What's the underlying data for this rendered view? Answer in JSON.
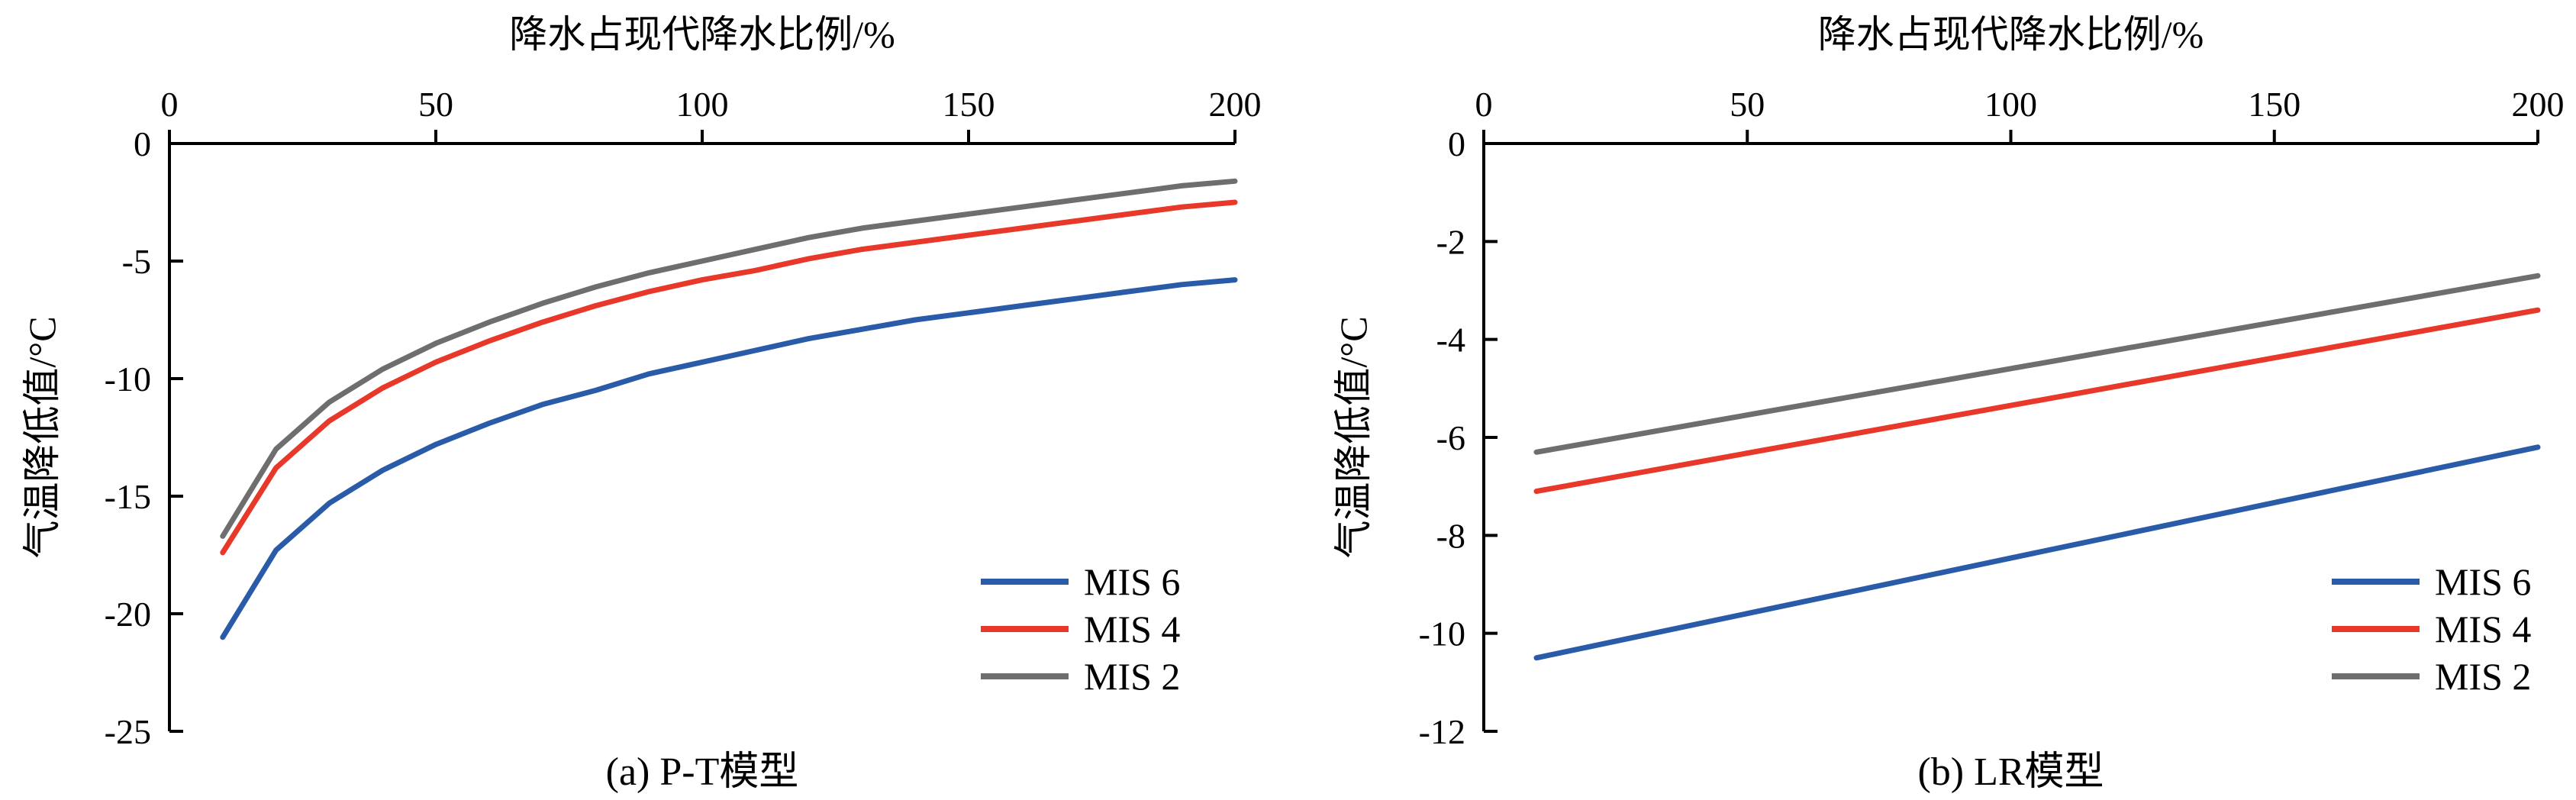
{
  "chart_data": [
    {
      "type": "line",
      "caption": "(a) P-T模型",
      "xlabel": "降水占现代降水比例/%",
      "ylabel": "气温降低值/°C",
      "xlim": [
        0,
        200
      ],
      "ylim": [
        -25,
        0
      ],
      "xticks": [
        0,
        50,
        100,
        150,
        200
      ],
      "yticks": [
        0,
        -5,
        -10,
        -15,
        -20,
        -25
      ],
      "x_axis_position": "top",
      "grid": false,
      "legend_position": "bottom-right",
      "x": [
        10,
        20,
        30,
        40,
        50,
        60,
        70,
        80,
        90,
        100,
        110,
        120,
        130,
        140,
        150,
        160,
        170,
        180,
        190,
        200
      ],
      "series": [
        {
          "name": "MIS 6",
          "color": "#2a5ba8",
          "values": [
            -21.0,
            -17.3,
            -15.3,
            -13.9,
            -12.8,
            -11.9,
            -11.1,
            -10.5,
            -9.8,
            -9.3,
            -8.8,
            -8.3,
            -7.9,
            -7.5,
            -7.2,
            -6.9,
            -6.6,
            -6.3,
            -6.0,
            -5.8
          ]
        },
        {
          "name": "MIS 4",
          "color": "#e8382a",
          "values": [
            -17.4,
            -13.8,
            -11.8,
            -10.4,
            -9.3,
            -8.4,
            -7.6,
            -6.9,
            -6.3,
            -5.8,
            -5.4,
            -4.9,
            -4.5,
            -4.2,
            -3.9,
            -3.6,
            -3.3,
            -3.0,
            -2.7,
            -2.5
          ]
        },
        {
          "name": "MIS 2",
          "color": "#6e6e6e",
          "values": [
            -16.7,
            -13.0,
            -11.0,
            -9.6,
            -8.5,
            -7.6,
            -6.8,
            -6.1,
            -5.5,
            -5.0,
            -4.5,
            -4.0,
            -3.6,
            -3.3,
            -3.0,
            -2.7,
            -2.4,
            -2.1,
            -1.8,
            -1.6
          ]
        }
      ]
    },
    {
      "type": "line",
      "caption": "(b) LR模型",
      "xlabel": "降水占现代降水比例/%",
      "ylabel": "气温降低值/°C",
      "xlim": [
        0,
        200
      ],
      "ylim": [
        -12,
        0
      ],
      "xticks": [
        0,
        50,
        100,
        150,
        200
      ],
      "yticks": [
        0,
        -2,
        -4,
        -6,
        -8,
        -10,
        -12
      ],
      "x_axis_position": "top",
      "grid": false,
      "legend_position": "bottom-right",
      "x": [
        10,
        200
      ],
      "series": [
        {
          "name": "MIS 6",
          "color": "#2a5ba8",
          "values": [
            -10.5,
            -6.2
          ]
        },
        {
          "name": "MIS 4",
          "color": "#e8382a",
          "values": [
            -7.1,
            -3.4
          ]
        },
        {
          "name": "MIS 2",
          "color": "#6e6e6e",
          "values": [
            -6.3,
            -2.7
          ]
        }
      ]
    }
  ]
}
